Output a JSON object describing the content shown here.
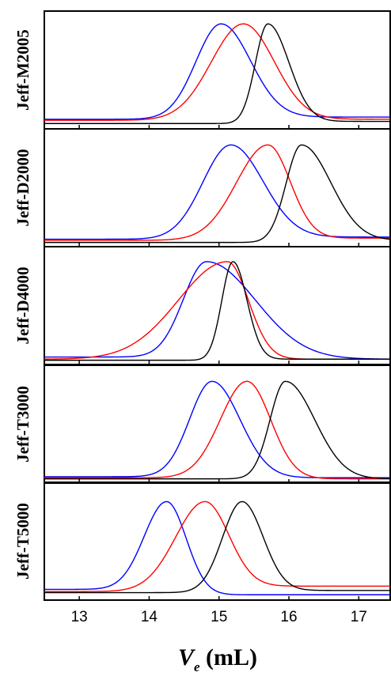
{
  "chart_data": {
    "type": "line",
    "xlim": [
      12.5,
      17.45
    ],
    "xticks": [
      "13",
      "14",
      "15",
      "16",
      "17"
    ],
    "xlabel": {
      "symbol": "V",
      "subscript": "e",
      "unit": " (mL)"
    },
    "y_axis": "no ticks or labels; each panel normalized",
    "series_colors": {
      "blue": "#0000ff",
      "red": "#ff0000",
      "black": "#000000"
    },
    "panels": [
      {
        "label": "Jeff-M2005",
        "curves": [
          {
            "color": "#0000ff",
            "peak_x": 15.03,
            "width_left": 0.36,
            "width_right": 0.42,
            "height": 0.94,
            "tail_left": 0.06,
            "tail_right": 0.08
          },
          {
            "color": "#ff0000",
            "peak_x": 15.35,
            "width_left": 0.46,
            "width_right": 0.44,
            "height": 0.94,
            "tail_left": 0.05,
            "tail_right": 0.06
          },
          {
            "color": "#000000",
            "peak_x": 15.7,
            "width_left": 0.18,
            "width_right": 0.3,
            "height": 0.94,
            "tail_left": 0.02,
            "tail_right": 0.04
          }
        ]
      },
      {
        "label": "Jeff-D2000",
        "curves": [
          {
            "color": "#0000ff",
            "peak_x": 15.17,
            "width_left": 0.4,
            "width_right": 0.46,
            "height": 0.91,
            "tail_left": 0.04,
            "tail_right": 0.06
          },
          {
            "color": "#ff0000",
            "peak_x": 15.7,
            "width_left": 0.45,
            "width_right": 0.32,
            "height": 0.91,
            "tail_left": 0.03,
            "tail_right": 0.05
          },
          {
            "color": "#000000",
            "peak_x": 16.18,
            "width_left": 0.22,
            "width_right": 0.42,
            "height": 0.91,
            "tail_left": 0.01,
            "tail_right": 0.03
          }
        ]
      },
      {
        "label": "Jeff-D4000",
        "curves": [
          {
            "color": "#0000ff",
            "peak_x": 14.82,
            "width_left": 0.33,
            "width_right": 0.7,
            "height": 0.92,
            "tail_left": 0.04,
            "tail_right": 0.02
          },
          {
            "color": "#ff0000",
            "peak_x": 15.12,
            "width_left": 0.7,
            "width_right": 0.3,
            "height": 0.92,
            "tail_left": 0.02,
            "tail_right": 0.02
          },
          {
            "color": "#000000",
            "peak_x": 15.2,
            "width_left": 0.16,
            "width_right": 0.2,
            "height": 0.92,
            "tail_left": 0.01,
            "tail_right": 0.02
          }
        ]
      },
      {
        "label": "Jeff-T3000",
        "curves": [
          {
            "color": "#0000ff",
            "peak_x": 14.9,
            "width_left": 0.32,
            "width_right": 0.4,
            "height": 0.91,
            "tail_left": 0.03,
            "tail_right": 0.02
          },
          {
            "color": "#ff0000",
            "peak_x": 15.4,
            "width_left": 0.38,
            "width_right": 0.34,
            "height": 0.91,
            "tail_left": 0.02,
            "tail_right": 0.01
          },
          {
            "color": "#000000",
            "peak_x": 15.95,
            "width_left": 0.22,
            "width_right": 0.42,
            "height": 0.91,
            "tail_left": 0.01,
            "tail_right": 0.01
          }
        ]
      },
      {
        "label": "Jeff-T5000",
        "curves": [
          {
            "color": "#0000ff",
            "peak_x": 14.25,
            "width_left": 0.32,
            "width_right": 0.28,
            "height": 0.88,
            "tail_left": 0.07,
            "tail_right": 0.02
          },
          {
            "color": "#ff0000",
            "peak_x": 14.8,
            "width_left": 0.42,
            "width_right": 0.34,
            "height": 0.88,
            "tail_left": 0.05,
            "tail_right": 0.1
          },
          {
            "color": "#000000",
            "peak_x": 15.33,
            "width_left": 0.28,
            "width_right": 0.3,
            "height": 0.88,
            "tail_left": 0.04,
            "tail_right": 0.06
          }
        ]
      }
    ]
  }
}
